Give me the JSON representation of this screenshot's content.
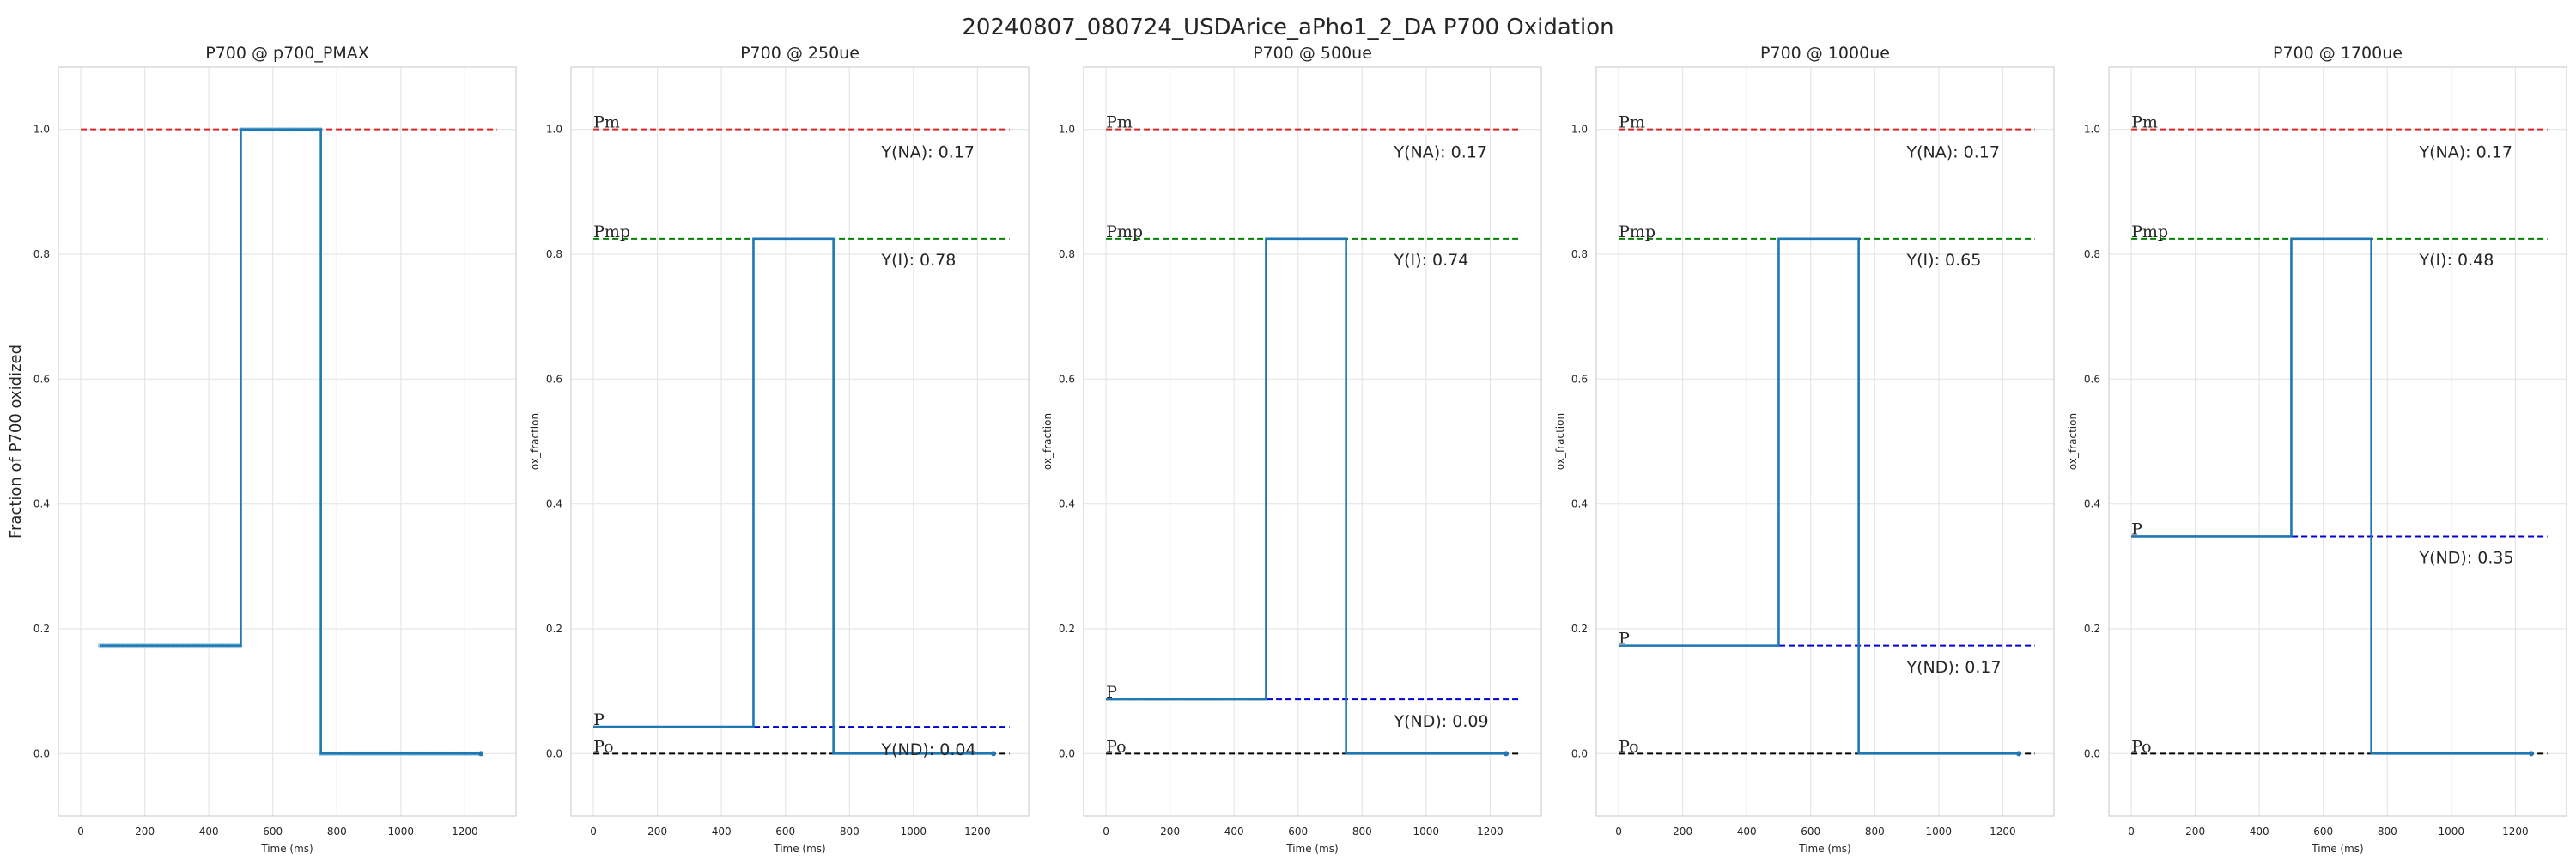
{
  "figure": {
    "title": "20240807_080724_USDArice_aPho1_2_DA P700 Oxidation"
  },
  "colors": {
    "pm": "#d62728",
    "pmp": "#008000",
    "p": "#0000cc",
    "po": "#000000",
    "trace": "#1f77b4",
    "points": "#9ecae1",
    "grid": "#e6e6e6",
    "frame": "#d0d0d0",
    "text": "#262626"
  },
  "chart_data": [
    {
      "type": "line",
      "title": "P700 @ p700_PMAX",
      "xlabel": "Time (ms)",
      "ylabel": "Fraction of P700 oxidized",
      "xlim": [
        -70,
        1360
      ],
      "ylim": [
        -0.1,
        1.1
      ],
      "xticks": [
        0,
        200,
        400,
        600,
        800,
        1000,
        1200
      ],
      "yticks": [
        0.0,
        0.2,
        0.4,
        0.6,
        0.8,
        1.0
      ],
      "grid": true,
      "trace": {
        "x": [
          60,
          500,
          500,
          750,
          750,
          1250
        ],
        "y": [
          0.173,
          0.173,
          1.0,
          1.0,
          0.0,
          0.0
        ]
      },
      "points": [
        {
          "x_range": [
            60,
            500
          ],
          "y": 0.173
        },
        {
          "x_range": [
            500,
            750
          ],
          "y": 1.0
        },
        {
          "x_range": [
            750,
            1250
          ],
          "y": 0.0
        }
      ],
      "hlines": [
        {
          "key": "pm",
          "y": 1.0,
          "xmin": 0,
          "xmax": 1300,
          "color": "#d62728",
          "label": ""
        }
      ],
      "annotations": []
    },
    {
      "type": "line",
      "title": "P700 @ 250ue",
      "xlabel": "Time (ms)",
      "ylabel": "ox_fraction",
      "xlim": [
        -70,
        1360
      ],
      "ylim": [
        -0.1,
        1.1
      ],
      "xticks": [
        0,
        200,
        400,
        600,
        800,
        1000,
        1200
      ],
      "yticks": [
        0.0,
        0.2,
        0.4,
        0.6,
        0.8,
        1.0
      ],
      "grid": true,
      "trace": {
        "x": [
          0,
          500,
          500,
          750,
          750,
          1250
        ],
        "y": [
          0.043,
          0.043,
          0.825,
          0.825,
          0.0,
          0.0
        ]
      },
      "points": [],
      "hlines": [
        {
          "key": "pm",
          "y": 1.0,
          "xmin": 0,
          "xmax": 1300,
          "color": "#d62728",
          "label": "Pm"
        },
        {
          "key": "pmp",
          "y": 0.825,
          "xmin": 0,
          "xmax": 1300,
          "color": "#008000",
          "label": "Pmp"
        },
        {
          "key": "p",
          "y": 0.043,
          "xmin": 0,
          "xmax": 1300,
          "color": "#0000cc",
          "label": "P"
        },
        {
          "key": "po",
          "y": 0.0,
          "xmin": 0,
          "xmax": 1300,
          "color": "#000000",
          "label": "Po"
        }
      ],
      "annotations": [
        {
          "text": "Y(NA): 0.17",
          "x": 900,
          "y": 0.955
        },
        {
          "text": "Y(I): 0.78",
          "x": 900,
          "y": 0.782
        },
        {
          "text": "Y(ND): 0.04",
          "x": 900,
          "y": -0.002
        }
      ]
    },
    {
      "type": "line",
      "title": "P700 @ 500ue",
      "xlabel": "Time (ms)",
      "ylabel": "ox_fraction",
      "xlim": [
        -70,
        1360
      ],
      "ylim": [
        -0.1,
        1.1
      ],
      "xticks": [
        0,
        200,
        400,
        600,
        800,
        1000,
        1200
      ],
      "yticks": [
        0.0,
        0.2,
        0.4,
        0.6,
        0.8,
        1.0
      ],
      "grid": true,
      "trace": {
        "x": [
          0,
          500,
          500,
          750,
          750,
          1250
        ],
        "y": [
          0.087,
          0.087,
          0.825,
          0.825,
          0.0,
          0.0
        ]
      },
      "points": [],
      "hlines": [
        {
          "key": "pm",
          "y": 1.0,
          "xmin": 0,
          "xmax": 1300,
          "color": "#d62728",
          "label": "Pm"
        },
        {
          "key": "pmp",
          "y": 0.825,
          "xmin": 0,
          "xmax": 1300,
          "color": "#008000",
          "label": "Pmp"
        },
        {
          "key": "p",
          "y": 0.087,
          "xmin": 0,
          "xmax": 1300,
          "color": "#0000cc",
          "label": "P"
        },
        {
          "key": "po",
          "y": 0.0,
          "xmin": 0,
          "xmax": 1300,
          "color": "#000000",
          "label": "Po"
        }
      ],
      "annotations": [
        {
          "text": "Y(NA): 0.17",
          "x": 900,
          "y": 0.955
        },
        {
          "text": "Y(I): 0.74",
          "x": 900,
          "y": 0.782
        },
        {
          "text": "Y(ND): 0.09",
          "x": 900,
          "y": 0.043
        }
      ]
    },
    {
      "type": "line",
      "title": "P700 @ 1000ue",
      "xlabel": "Time (ms)",
      "ylabel": "ox_fraction",
      "xlim": [
        -70,
        1360
      ],
      "ylim": [
        -0.1,
        1.1
      ],
      "xticks": [
        0,
        200,
        400,
        600,
        800,
        1000,
        1200
      ],
      "yticks": [
        0.0,
        0.2,
        0.4,
        0.6,
        0.8,
        1.0
      ],
      "grid": true,
      "trace": {
        "x": [
          0,
          500,
          500,
          750,
          750,
          1250
        ],
        "y": [
          0.173,
          0.173,
          0.825,
          0.825,
          0.0,
          0.0
        ]
      },
      "points": [],
      "hlines": [
        {
          "key": "pm",
          "y": 1.0,
          "xmin": 0,
          "xmax": 1300,
          "color": "#d62728",
          "label": "Pm"
        },
        {
          "key": "pmp",
          "y": 0.825,
          "xmin": 0,
          "xmax": 1300,
          "color": "#008000",
          "label": "Pmp"
        },
        {
          "key": "p",
          "y": 0.173,
          "xmin": 0,
          "xmax": 1300,
          "color": "#0000cc",
          "label": "P"
        },
        {
          "key": "po",
          "y": 0.0,
          "xmin": 0,
          "xmax": 1300,
          "color": "#000000",
          "label": "Po"
        }
      ],
      "annotations": [
        {
          "text": "Y(NA): 0.17",
          "x": 900,
          "y": 0.955
        },
        {
          "text": "Y(I): 0.65",
          "x": 900,
          "y": 0.782
        },
        {
          "text": "Y(ND): 0.17",
          "x": 900,
          "y": 0.13
        }
      ]
    },
    {
      "type": "line",
      "title": "P700 @ 1700ue",
      "xlabel": "Time (ms)",
      "ylabel": "ox_fraction",
      "xlim": [
        -70,
        1360
      ],
      "ylim": [
        -0.1,
        1.1
      ],
      "xticks": [
        0,
        200,
        400,
        600,
        800,
        1000,
        1200
      ],
      "yticks": [
        0.0,
        0.2,
        0.4,
        0.6,
        0.8,
        1.0
      ],
      "grid": true,
      "trace": {
        "x": [
          0,
          500,
          500,
          750,
          750,
          1250
        ],
        "y": [
          0.348,
          0.348,
          0.825,
          0.825,
          0.0,
          0.0
        ]
      },
      "points": [],
      "hlines": [
        {
          "key": "pm",
          "y": 1.0,
          "xmin": 0,
          "xmax": 1300,
          "color": "#d62728",
          "label": "Pm"
        },
        {
          "key": "pmp",
          "y": 0.825,
          "xmin": 0,
          "xmax": 1300,
          "color": "#008000",
          "label": "Pmp"
        },
        {
          "key": "p",
          "y": 0.348,
          "xmin": 0,
          "xmax": 1300,
          "color": "#0000cc",
          "label": "P"
        },
        {
          "key": "po",
          "y": 0.0,
          "xmin": 0,
          "xmax": 1300,
          "color": "#000000",
          "label": "Po"
        }
      ],
      "annotations": [
        {
          "text": "Y(NA): 0.17",
          "x": 900,
          "y": 0.955
        },
        {
          "text": "Y(I): 0.48",
          "x": 900,
          "y": 0.782
        },
        {
          "text": "Y(ND): 0.35",
          "x": 900,
          "y": 0.305
        }
      ]
    }
  ]
}
